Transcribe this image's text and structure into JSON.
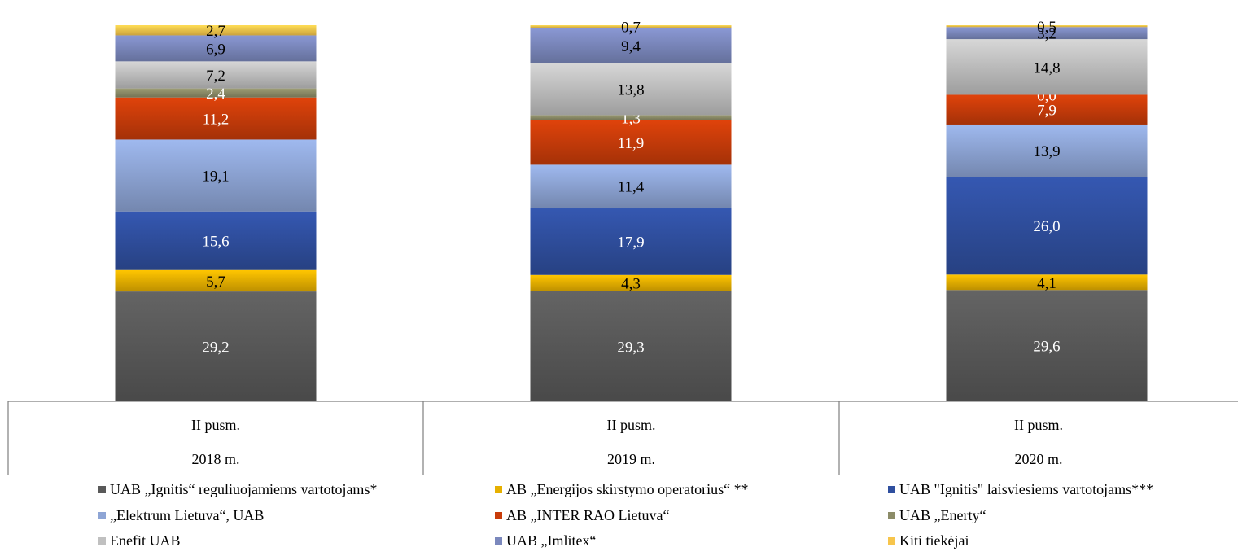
{
  "chart_data": {
    "type": "bar",
    "stacked": true,
    "title": "",
    "categories": [
      {
        "line1": "II pusm.",
        "line2": "2018 m."
      },
      {
        "line1": "II pusm.",
        "line2": "2019 m."
      },
      {
        "line1": "II pusm.",
        "line2": "2020 m."
      }
    ],
    "series": [
      {
        "name": "UAB „Ignitis“ reguliuojamiems vartotojams*",
        "color": "#595959",
        "label_color": "#ffffff",
        "values": [
          29.2,
          29.3,
          29.6
        ],
        "labels": [
          "29,2",
          "29,3",
          "29,6"
        ]
      },
      {
        "name": "AB „Energijos skirstymo operatorius“ **",
        "color": "#e6b000",
        "label_color": "#000000",
        "values": [
          5.7,
          4.3,
          4.1
        ],
        "labels": [
          "5,7",
          "4,3",
          "4,1"
        ]
      },
      {
        "name": "UAB \"Ignitis\" laisviesiems vartotojams***",
        "color": "#2f4f9f",
        "label_color": "#ffffff",
        "values": [
          15.6,
          17.9,
          26.0
        ],
        "labels": [
          "15,6",
          "17,9",
          "26,0"
        ]
      },
      {
        "name": "„Elektrum Lietuva“, UAB",
        "color": "#8ea5d5",
        "label_color": "#000000",
        "values": [
          19.1,
          11.4,
          13.9
        ],
        "labels": [
          "19,1",
          "11,4",
          "13,9"
        ]
      },
      {
        "name": "AB „INTER RAO Lietuva“",
        "color": "#c83c0a",
        "label_color": "#ffffff",
        "values": [
          11.2,
          11.9,
          7.9
        ],
        "labels": [
          "11,2",
          "11,9",
          "7,9"
        ]
      },
      {
        "name": "UAB „Enerty“",
        "color": "#8c8c68",
        "label_color": "#ffffff",
        "values": [
          2.4,
          1.3,
          0.0
        ],
        "labels": [
          "2,4",
          "1,3",
          "0,0"
        ]
      },
      {
        "name": "Enefit UAB",
        "color": "#c0c0c0",
        "label_color": "#000000",
        "values": [
          7.2,
          13.8,
          14.8
        ],
        "labels": [
          "7,2",
          "13,8",
          "14,8"
        ]
      },
      {
        "name": "UAB „Imlitex“",
        "color": "#7b88bd",
        "label_color": "#000000",
        "values": [
          6.9,
          9.4,
          3.2
        ],
        "labels": [
          "6,9",
          "9,4",
          "3,2"
        ]
      },
      {
        "name": "Kiti tiekėjai",
        "color": "#f7c54c",
        "label_color": "#000000",
        "values": [
          2.7,
          0.7,
          0.5
        ],
        "labels": [
          "2,7",
          "0,7",
          "0,5"
        ]
      }
    ],
    "ylim": [
      0,
      100
    ],
    "grid": false,
    "legend_position": "bottom",
    "xlabel": "",
    "ylabel": ""
  }
}
